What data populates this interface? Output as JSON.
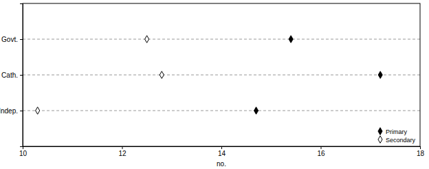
{
  "chart_data": {
    "type": "dot",
    "orientation": "horizontal",
    "categories": [
      "Govt.",
      "Cath.",
      "Indep."
    ],
    "series": [
      {
        "name": "Primary",
        "color": "#000000",
        "marker": "diamond",
        "values": [
          15.4,
          17.2,
          14.7
        ]
      },
      {
        "name": "Secondary",
        "color": "#000000",
        "marker": "diamond-open",
        "values": [
          12.5,
          12.8,
          10.3
        ]
      }
    ],
    "x_label": "no.",
    "xlim": [
      10,
      18
    ],
    "xticks": [
      10,
      12,
      14,
      16,
      18
    ],
    "grid": true,
    "legend": "lower right"
  }
}
